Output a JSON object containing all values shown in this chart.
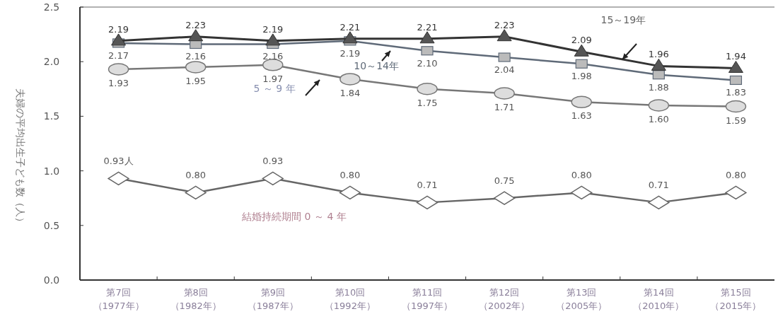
{
  "chart_data": {
    "type": "line",
    "ylabel": "夫婦の平均出生子ども数（人）",
    "categories": [
      "第7回（1977年）",
      "第8回（1982年）",
      "第9回（1987年）",
      "第10回（1992年）",
      "第11回（1997年）",
      "第12回（2002年）",
      "第13回（2005年）",
      "第14回（2010年）",
      "第15回（2015年）"
    ],
    "ylim": [
      0,
      2.5
    ],
    "yticks": [
      {
        "value": 0,
        "label": "0.0"
      },
      {
        "value": 0.5,
        "label": "0.5"
      },
      {
        "value": 1,
        "label": "1.0"
      },
      {
        "value": 1.5,
        "label": "1.5"
      },
      {
        "value": 2,
        "label": "2.0"
      },
      {
        "value": 2.5,
        "label": "2.5"
      }
    ],
    "grid": false,
    "series": [
      {
        "name": "結婚持続期間 0 ～ 4 年",
        "color": "#666666",
        "marker": "diamond",
        "values": [
          0.93,
          0.8,
          0.93,
          0.8,
          0.71,
          0.75,
          0.8,
          0.71,
          0.8
        ],
        "value_labels": [
          "0.93人",
          "0.80",
          "0.93",
          "0.80",
          "0.71",
          "0.75",
          "0.80",
          "0.71",
          "0.80"
        ]
      },
      {
        "name": "5 ～ 9 年",
        "color": "#777777",
        "marker": "circle",
        "values": [
          1.93,
          1.95,
          1.97,
          1.84,
          1.75,
          1.71,
          1.63,
          1.6,
          1.59
        ],
        "value_labels": [
          "1.93",
          "1.95",
          "1.97",
          "1.84",
          "1.75",
          "1.71",
          "1.63",
          "1.60",
          "1.59"
        ]
      },
      {
        "name": "10～14年",
        "color": "#5f6a78",
        "marker": "square",
        "values": [
          2.17,
          2.16,
          2.16,
          2.19,
          2.1,
          2.04,
          1.98,
          1.88,
          1.83
        ],
        "value_labels": [
          "2.17",
          "2.16",
          "2.16",
          "2.19",
          "2.10",
          "2.04",
          "1.98",
          "1.88",
          "1.83"
        ]
      },
      {
        "name": "15～19年",
        "color": "#333333",
        "marker": "triangle",
        "values": [
          2.19,
          2.23,
          2.19,
          2.21,
          2.21,
          2.23,
          2.09,
          1.96,
          1.94
        ],
        "value_labels": [
          "2.19",
          "2.23",
          "2.19",
          "2.21",
          "2.21",
          "2.23",
          "2.09",
          "1.96",
          "1.94"
        ]
      }
    ]
  }
}
